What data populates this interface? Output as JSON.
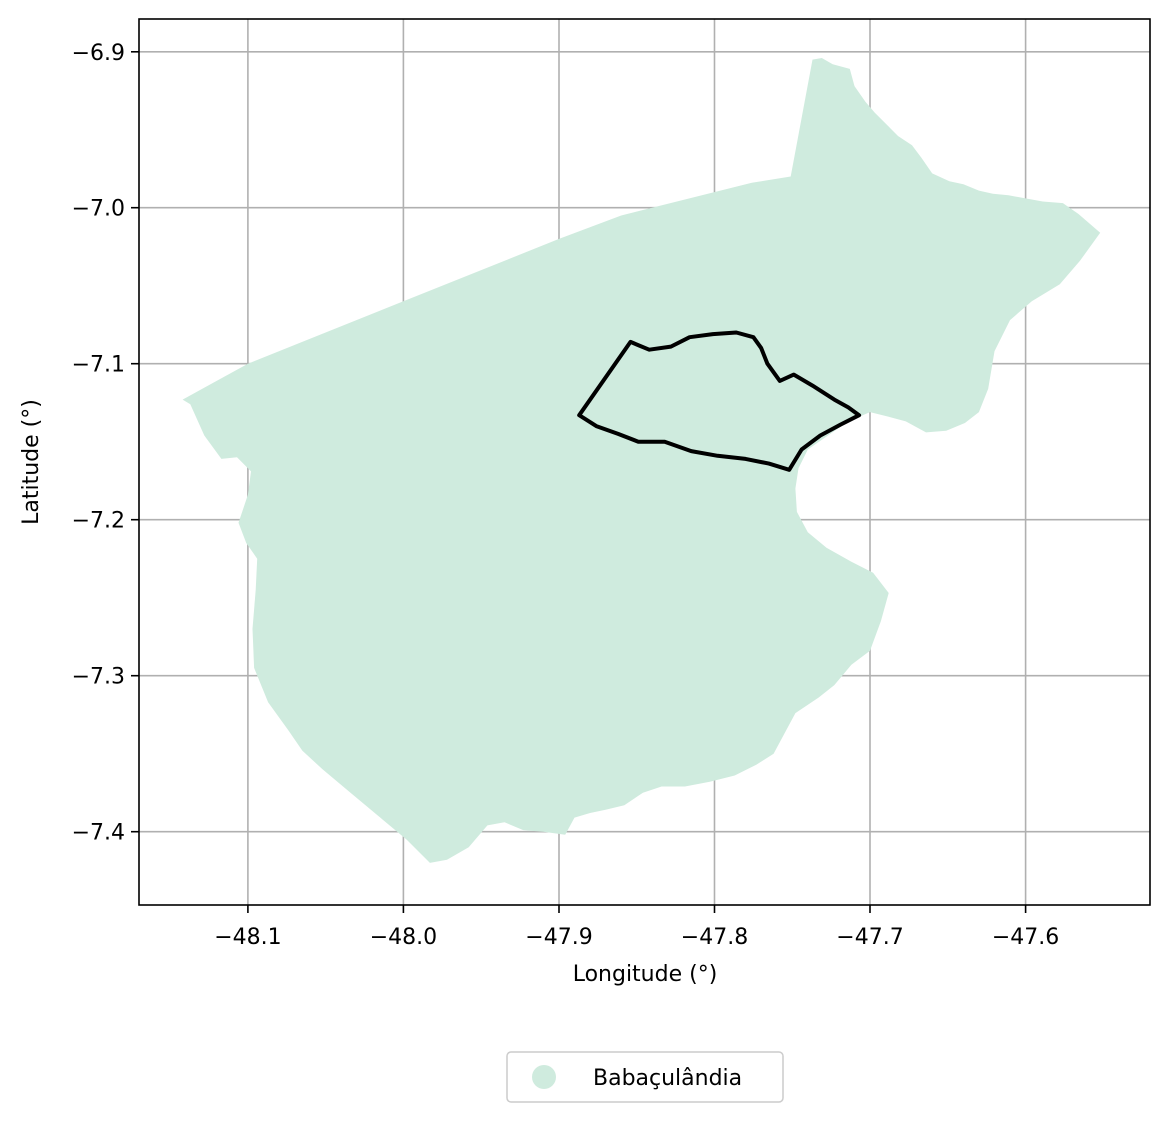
{
  "chart_data": {
    "type": "map",
    "xlabel": "Longitude (°)",
    "ylabel": "Latitude (°)",
    "xlim": [
      -48.17,
      -47.52
    ],
    "ylim": [
      -7.447,
      -6.879
    ],
    "x_ticks": [
      -48.1,
      -48.0,
      -47.9,
      -47.8,
      -47.7,
      -47.6
    ],
    "x_tick_labels": [
      "−48.1",
      "−48.0",
      "−47.9",
      "−47.8",
      "−47.7",
      "−47.6"
    ],
    "y_ticks": [
      -6.9,
      -7.0,
      -7.1,
      -7.2,
      -7.3,
      -7.4
    ],
    "y_tick_labels": [
      "−6.9",
      "−7.0",
      "−7.1",
      "−7.2",
      "−7.3",
      "−7.4"
    ],
    "grid": true,
    "legend_position": "bottom-center",
    "fill_color": "#cfebde",
    "outline_color": "#000000",
    "legend": [
      {
        "label": "Babaçulândia",
        "color": "#cfebde"
      }
    ],
    "municipality_polygon": [
      [
        -47.737,
        -6.905
      ],
      [
        -47.731,
        -6.904
      ],
      [
        -47.724,
        -6.908
      ],
      [
        -47.713,
        -6.911
      ],
      [
        -47.71,
        -6.922
      ],
      [
        -47.703,
        -6.932
      ],
      [
        -47.697,
        -6.939
      ],
      [
        -47.69,
        -6.946
      ],
      [
        -47.682,
        -6.954
      ],
      [
        -47.673,
        -6.96
      ],
      [
        -47.667,
        -6.968
      ],
      [
        -47.66,
        -6.978
      ],
      [
        -47.649,
        -6.983
      ],
      [
        -47.64,
        -6.985
      ],
      [
        -47.63,
        -6.989
      ],
      [
        -47.621,
        -6.991
      ],
      [
        -47.611,
        -6.992
      ],
      [
        -47.6,
        -6.994
      ],
      [
        -47.589,
        -6.996
      ],
      [
        -47.576,
        -6.997
      ],
      [
        -47.566,
        -7.004
      ],
      [
        -47.552,
        -7.016
      ],
      [
        -47.565,
        -7.034
      ],
      [
        -47.578,
        -7.049
      ],
      [
        -47.596,
        -7.06
      ],
      [
        -47.61,
        -7.072
      ],
      [
        -47.62,
        -7.092
      ],
      [
        -47.624,
        -7.116
      ],
      [
        -47.63,
        -7.131
      ],
      [
        -47.639,
        -7.138
      ],
      [
        -47.651,
        -7.143
      ],
      [
        -47.664,
        -7.144
      ],
      [
        -47.677,
        -7.137
      ],
      [
        -47.688,
        -7.134
      ],
      [
        -47.7,
        -7.131
      ],
      [
        -47.714,
        -7.137
      ],
      [
        -47.727,
        -7.146
      ],
      [
        -47.74,
        -7.155
      ],
      [
        -47.746,
        -7.167
      ],
      [
        -47.748,
        -7.18
      ],
      [
        -47.747,
        -7.195
      ],
      [
        -47.74,
        -7.208
      ],
      [
        -47.728,
        -7.218
      ],
      [
        -47.712,
        -7.227
      ],
      [
        -47.698,
        -7.234
      ],
      [
        -47.688,
        -7.247
      ],
      [
        -47.693,
        -7.265
      ],
      [
        -47.7,
        -7.284
      ],
      [
        -47.712,
        -7.293
      ],
      [
        -47.723,
        -7.306
      ],
      [
        -47.733,
        -7.314
      ],
      [
        -47.748,
        -7.324
      ],
      [
        -47.762,
        -7.35
      ],
      [
        -47.773,
        -7.357
      ],
      [
        -47.787,
        -7.364
      ],
      [
        -47.803,
        -7.368
      ],
      [
        -47.819,
        -7.371
      ],
      [
        -47.834,
        -7.371
      ],
      [
        -47.846,
        -7.375
      ],
      [
        -47.858,
        -7.383
      ],
      [
        -47.87,
        -7.386
      ],
      [
        -47.88,
        -7.388
      ],
      [
        -47.89,
        -7.391
      ],
      [
        -47.896,
        -7.402
      ],
      [
        -47.91,
        -7.4
      ],
      [
        -47.923,
        -7.399
      ],
      [
        -47.935,
        -7.394
      ],
      [
        -47.946,
        -7.396
      ],
      [
        -47.958,
        -7.41
      ],
      [
        -47.972,
        -7.418
      ],
      [
        -47.983,
        -7.42
      ],
      [
        -47.998,
        -7.405
      ],
      [
        -48.016,
        -7.39
      ],
      [
        -48.034,
        -7.375
      ],
      [
        -48.052,
        -7.36
      ],
      [
        -48.065,
        -7.348
      ],
      [
        -48.074,
        -7.335
      ],
      [
        -48.087,
        -7.317
      ],
      [
        -48.096,
        -7.295
      ],
      [
        -48.097,
        -7.27
      ],
      [
        -48.095,
        -7.245
      ],
      [
        -48.094,
        -7.225
      ],
      [
        -48.101,
        -7.215
      ],
      [
        -48.106,
        -7.202
      ],
      [
        -48.1,
        -7.184
      ],
      [
        -48.098,
        -7.169
      ],
      [
        -48.107,
        -7.16
      ],
      [
        -48.117,
        -7.161
      ],
      [
        -48.128,
        -7.146
      ],
      [
        -48.137,
        -7.126
      ],
      [
        -48.142,
        -7.123
      ],
      [
        -48.1,
        -7.1
      ],
      [
        -48.05,
        -7.08
      ],
      [
        -48.0,
        -7.06
      ],
      [
        -47.95,
        -7.04
      ],
      [
        -47.9,
        -7.02
      ],
      [
        -47.86,
        -7.005
      ],
      [
        -47.82,
        -6.995
      ],
      [
        -47.776,
        -6.984
      ],
      [
        -47.751,
        -6.98
      ]
    ],
    "outline_polygon": [
      [
        -47.887,
        -7.133
      ],
      [
        -47.854,
        -7.086
      ],
      [
        -47.842,
        -7.091
      ],
      [
        -47.828,
        -7.089
      ],
      [
        -47.816,
        -7.083
      ],
      [
        -47.801,
        -7.081
      ],
      [
        -47.786,
        -7.08
      ],
      [
        -47.775,
        -7.083
      ],
      [
        -47.77,
        -7.09
      ],
      [
        -47.766,
        -7.1
      ],
      [
        -47.758,
        -7.111
      ],
      [
        -47.749,
        -7.107
      ],
      [
        -47.737,
        -7.114
      ],
      [
        -47.723,
        -7.123
      ],
      [
        -47.714,
        -7.128
      ],
      [
        -47.707,
        -7.133
      ],
      [
        -47.719,
        -7.139
      ],
      [
        -47.732,
        -7.146
      ],
      [
        -47.744,
        -7.155
      ],
      [
        -47.752,
        -7.168
      ],
      [
        -47.765,
        -7.164
      ],
      [
        -47.78,
        -7.161
      ],
      [
        -47.798,
        -7.159
      ],
      [
        -47.815,
        -7.156
      ],
      [
        -47.832,
        -7.15
      ],
      [
        -47.849,
        -7.15
      ],
      [
        -47.862,
        -7.145
      ],
      [
        -47.876,
        -7.14
      ]
    ]
  }
}
